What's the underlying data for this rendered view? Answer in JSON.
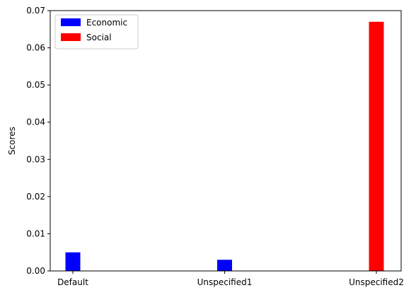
{
  "chart_data": {
    "type": "bar",
    "categories": [
      "Default",
      "Unspecified1",
      "Unspecified2"
    ],
    "series": [
      {
        "name": "Economic",
        "color": "#0000ff",
        "values": [
          0.005,
          0.003,
          0
        ]
      },
      {
        "name": "Social",
        "color": "#ff0000",
        "values": [
          0,
          0,
          0.067
        ]
      }
    ],
    "title": "",
    "xlabel": "",
    "ylabel": "Scores",
    "ylim": [
      0,
      0.07
    ],
    "yticks": [
      0.0,
      0.01,
      0.02,
      0.03,
      0.04,
      0.05,
      0.06,
      0.07
    ],
    "ytick_labels": [
      "0.00",
      "0.01",
      "0.02",
      "0.03",
      "0.04",
      "0.05",
      "0.06",
      "0.07"
    ],
    "grid": false,
    "legend_position": "top-left"
  }
}
